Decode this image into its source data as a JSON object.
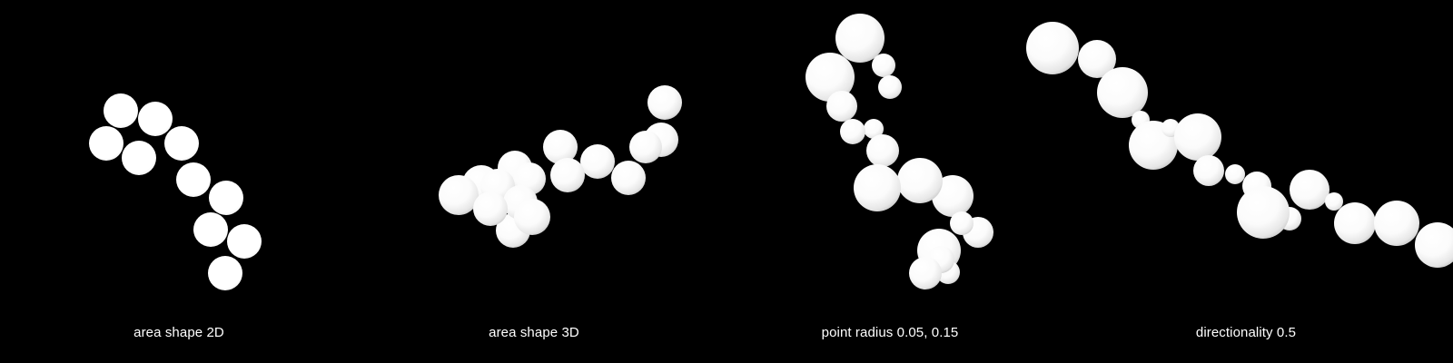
{
  "panels": [
    {
      "caption": "area shape 2D"
    },
    {
      "caption": "area shape 3D"
    },
    {
      "caption": "point radius 0.05, 0.15"
    },
    {
      "caption": "directionality 0.5"
    }
  ],
  "colors": {
    "background": "#000000",
    "sphere_light": "#ffffff",
    "sphere_shadow": "#bdbdbd",
    "caption_text": "#ffffff"
  }
}
